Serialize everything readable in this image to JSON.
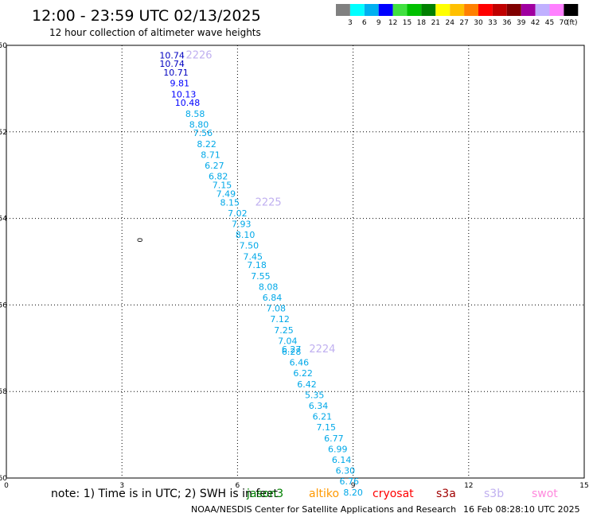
{
  "title": "12:00 - 23:59 UTC 02/13/2025",
  "subtitle": "12 hour collection of altimeter wave heights",
  "colorbar": {
    "labels": [
      "3",
      "6",
      "9",
      "12",
      "15",
      "18",
      "21",
      "24",
      "27",
      "30",
      "33",
      "36",
      "39",
      "42",
      "45",
      "70"
    ],
    "unit": "(ft)",
    "colors": [
      "#808080",
      "#00ffff",
      "#00b0f0",
      "#0000ff",
      "#40e040",
      "#00c000",
      "#008000",
      "#ffff00",
      "#ffc000",
      "#ff8000",
      "#ff0000",
      "#c00000",
      "#800000",
      "#a000a0",
      "#c0b0ff",
      "#ff80ff",
      "#000000"
    ]
  },
  "note": "note: 1) Time is in UTC; 2) SWH is in feet",
  "footer": {
    "credit": "NOAA/NESDIS Center for Satellite Applications and Research",
    "timestamp": "16 Feb 08:28:10 UTC 2025"
  },
  "legend": [
    {
      "name": "jason3",
      "label": "jason3",
      "color": "#008000"
    },
    {
      "name": "altika",
      "label": "altiko",
      "color": "#ff9900"
    },
    {
      "name": "cryosat",
      "label": "cryosat",
      "color": "#ff0000"
    },
    {
      "name": "s3a",
      "label": "s3a",
      "color": "#a00000"
    },
    {
      "name": "s3b",
      "label": "s3b",
      "color": "#c0b0f0"
    },
    {
      "name": "swot",
      "label": "swot",
      "color": "#ff88dd"
    }
  ],
  "chart_data": {
    "type": "scatter",
    "x_ticks": [
      "0",
      "3",
      "6",
      "9",
      "12",
      "15"
    ],
    "y_ticks": [
      "-50",
      "-52",
      "-54",
      "-56",
      "-58",
      "-60"
    ],
    "xlim": [
      0,
      15
    ],
    "y_tick_values": [
      -50,
      -52,
      -54,
      -56,
      -58,
      -60
    ],
    "grid": true,
    "track_color": "#c0b0f0",
    "pass_labels": [
      {
        "text": "2226",
        "x": 5.0,
        "y": -50.3
      },
      {
        "text": "2225",
        "x": 6.8,
        "y": -53.7
      },
      {
        "text": "2224",
        "x": 8.2,
        "y": -57.1
      }
    ],
    "extra_marks": [
      {
        "text": "0",
        "x": 3.4,
        "y": -54.5
      }
    ],
    "points": [
      {
        "x": 4.3,
        "y": -50.3,
        "v": "10.74"
      },
      {
        "x": 4.3,
        "y": -50.5,
        "v": "10.74"
      },
      {
        "x": 4.4,
        "y": -50.7,
        "v": "10.71"
      },
      {
        "x": 4.5,
        "y": -50.95,
        "v": "9.81"
      },
      {
        "x": 4.6,
        "y": -51.2,
        "v": "10.13"
      },
      {
        "x": 4.7,
        "y": -51.4,
        "v": "10.48"
      },
      {
        "x": 4.9,
        "y": -51.65,
        "v": "8.58"
      },
      {
        "x": 5.0,
        "y": -51.9,
        "v": "8.80"
      },
      {
        "x": 5.1,
        "y": -52.1,
        "v": "7.56"
      },
      {
        "x": 5.2,
        "y": -52.35,
        "v": "8.22"
      },
      {
        "x": 5.3,
        "y": -52.6,
        "v": "8.71"
      },
      {
        "x": 5.4,
        "y": -52.85,
        "v": "6.27"
      },
      {
        "x": 5.5,
        "y": -53.1,
        "v": "6.82"
      },
      {
        "x": 5.6,
        "y": -53.3,
        "v": "7.15"
      },
      {
        "x": 5.7,
        "y": -53.5,
        "v": "7.49"
      },
      {
        "x": 5.8,
        "y": -53.7,
        "v": "8.15"
      },
      {
        "x": 6.0,
        "y": -53.95,
        "v": "7.02"
      },
      {
        "x": 6.1,
        "y": -54.2,
        "v": "7.93"
      },
      {
        "x": 6.2,
        "y": -54.45,
        "v": "8.10"
      },
      {
        "x": 6.3,
        "y": -54.7,
        "v": "7.50"
      },
      {
        "x": 6.4,
        "y": -54.95,
        "v": "7.45"
      },
      {
        "x": 6.5,
        "y": -55.15,
        "v": "7.18"
      },
      {
        "x": 6.6,
        "y": -55.4,
        "v": "7.55"
      },
      {
        "x": 6.8,
        "y": -55.65,
        "v": "8.08"
      },
      {
        "x": 6.9,
        "y": -55.9,
        "v": "6.84"
      },
      {
        "x": 7.0,
        "y": -56.15,
        "v": "7.08"
      },
      {
        "x": 7.1,
        "y": -56.4,
        "v": "7.12"
      },
      {
        "x": 7.2,
        "y": -56.65,
        "v": "7.25"
      },
      {
        "x": 7.3,
        "y": -56.9,
        "v": "7.04"
      },
      {
        "x": 7.4,
        "y": -57.1,
        "v": "6.27"
      },
      {
        "x": 7.4,
        "y": -57.15,
        "v": "6.28"
      },
      {
        "x": 7.6,
        "y": -57.4,
        "v": "6.46"
      },
      {
        "x": 7.7,
        "y": -57.65,
        "v": "6.22"
      },
      {
        "x": 7.8,
        "y": -57.9,
        "v": "6.42"
      },
      {
        "x": 8.0,
        "y": -58.15,
        "v": "5.35"
      },
      {
        "x": 8.1,
        "y": -58.4,
        "v": "6.34"
      },
      {
        "x": 8.2,
        "y": -58.65,
        "v": "6.21"
      },
      {
        "x": 8.3,
        "y": -58.9,
        "v": "7.15"
      },
      {
        "x": 8.5,
        "y": -59.15,
        "v": "6.77"
      },
      {
        "x": 8.6,
        "y": -59.4,
        "v": "6.99"
      },
      {
        "x": 8.7,
        "y": -59.65,
        "v": "6.14"
      },
      {
        "x": 8.8,
        "y": -59.9,
        "v": "6.30"
      },
      {
        "x": 8.9,
        "y": -60.15,
        "v": "6.76"
      },
      {
        "x": 9.0,
        "y": -60.4,
        "v": "8.20"
      }
    ]
  }
}
